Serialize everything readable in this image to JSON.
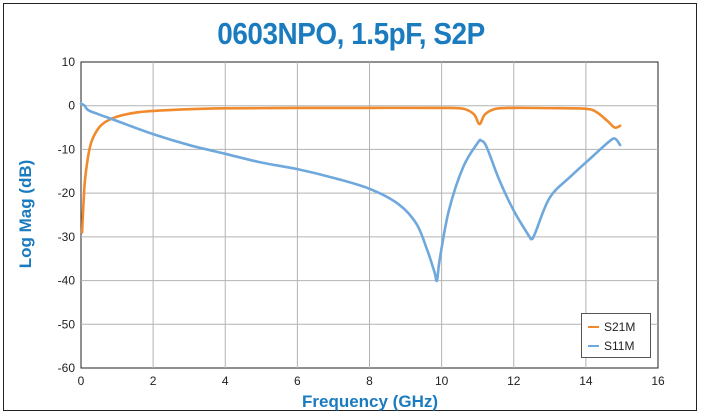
{
  "chart_data": {
    "type": "line",
    "title": "0603NPO, 1.5pF, S2P",
    "xlabel": "Frequency (GHz)",
    "ylabel": "Log Mag (dB)",
    "xlim": [
      0,
      16
    ],
    "ylim": [
      -60,
      10
    ],
    "xticks": [
      0,
      2,
      4,
      6,
      8,
      10,
      12,
      14,
      16
    ],
    "yticks": [
      10,
      0,
      -10,
      -20,
      -30,
      -40,
      -50,
      -60
    ],
    "grid": true,
    "legend_position": "bottom-right",
    "series": [
      {
        "name": "S21M",
        "color": "#f08a2c",
        "x": [
          0.03,
          0.1,
          0.2,
          0.3,
          0.5,
          0.7,
          1.0,
          1.5,
          2.0,
          3.0,
          4.0,
          5.0,
          6.0,
          8.0,
          10.0,
          10.6,
          10.9,
          11.05,
          11.2,
          11.5,
          12.0,
          13.0,
          14.0,
          14.3,
          14.6,
          14.8,
          14.95
        ],
        "y": [
          -29.0,
          -18.0,
          -11.5,
          -8.0,
          -5.0,
          -3.6,
          -2.5,
          -1.6,
          -1.2,
          -0.8,
          -0.6,
          -0.55,
          -0.5,
          -0.5,
          -0.5,
          -0.7,
          -2.0,
          -4.2,
          -2.0,
          -0.7,
          -0.5,
          -0.55,
          -0.7,
          -1.5,
          -3.5,
          -5.0,
          -4.6
        ]
      },
      {
        "name": "S11M",
        "color": "#6fa8dc",
        "x": [
          0.0,
          0.1,
          0.2,
          0.5,
          1.0,
          2.0,
          3.0,
          4.0,
          5.0,
          6.0,
          7.0,
          8.0,
          8.8,
          9.3,
          9.6,
          9.8,
          9.87,
          9.95,
          10.2,
          10.6,
          11.0,
          11.1,
          11.25,
          11.6,
          12.0,
          12.4,
          12.5,
          12.6,
          13.0,
          13.6,
          14.2,
          14.6,
          14.8,
          14.95
        ],
        "y": [
          0.5,
          0.0,
          -1.0,
          -2.0,
          -3.5,
          -6.5,
          -9.0,
          -11.0,
          -13.0,
          -14.5,
          -16.5,
          -19.0,
          -22.5,
          -27.0,
          -33.0,
          -38.0,
          -40.0,
          -35.0,
          -24.0,
          -14.0,
          -8.5,
          -8.0,
          -9.5,
          -17.0,
          -24.0,
          -29.5,
          -30.5,
          -29.0,
          -21.0,
          -16.0,
          -11.5,
          -8.5,
          -7.5,
          -9.0
        ]
      }
    ]
  }
}
